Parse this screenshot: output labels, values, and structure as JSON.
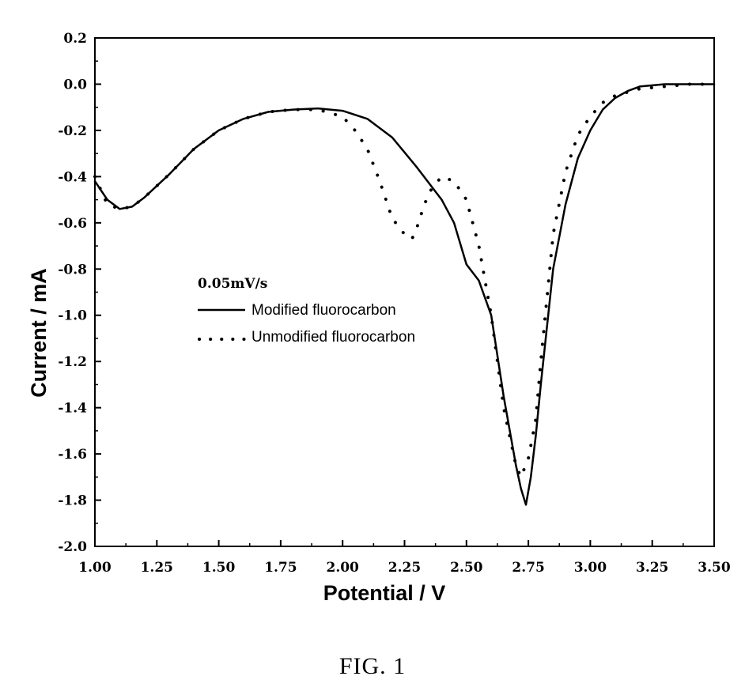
{
  "caption": "FIG. 1",
  "chart_data": {
    "type": "line",
    "xlabel": "Potential / V",
    "ylabel": "Current / mA",
    "xlim": [
      1.0,
      3.5
    ],
    "ylim": [
      -2.0,
      0.2
    ],
    "xticks": [
      "1.00",
      "1.25",
      "1.50",
      "1.75",
      "2.00",
      "2.25",
      "2.50",
      "2.75",
      "3.00",
      "3.25",
      "3.50"
    ],
    "yticks": [
      "0.2",
      "0.0",
      "-0.2",
      "-0.4",
      "-0.6",
      "-0.8",
      "-1.0",
      "-1.2",
      "-1.4",
      "-1.6",
      "-1.8",
      "-2.0"
    ],
    "grid": false,
    "legend": {
      "title": "0.05mV/s",
      "placement": "center-left"
    },
    "series": [
      {
        "name": "Modified fluorocarbon",
        "style": "solid",
        "color": "#000000",
        "x": [
          1.0,
          1.05,
          1.1,
          1.15,
          1.2,
          1.3,
          1.4,
          1.5,
          1.6,
          1.7,
          1.8,
          1.9,
          2.0,
          2.1,
          2.2,
          2.3,
          2.4,
          2.45,
          2.5,
          2.55,
          2.6,
          2.65,
          2.7,
          2.72,
          2.74,
          2.76,
          2.78,
          2.8,
          2.85,
          2.9,
          2.95,
          3.0,
          3.05,
          3.1,
          3.15,
          3.2,
          3.3,
          3.4,
          3.5
        ],
        "y": [
          -0.42,
          -0.5,
          -0.54,
          -0.53,
          -0.49,
          -0.39,
          -0.28,
          -0.2,
          -0.15,
          -0.12,
          -0.11,
          -0.105,
          -0.115,
          -0.15,
          -0.23,
          -0.36,
          -0.5,
          -0.6,
          -0.78,
          -0.85,
          -1.0,
          -1.35,
          -1.65,
          -1.75,
          -1.82,
          -1.7,
          -1.52,
          -1.3,
          -0.8,
          -0.52,
          -0.32,
          -0.2,
          -0.11,
          -0.06,
          -0.03,
          -0.01,
          0.0,
          0.0,
          0.0
        ]
      },
      {
        "name": "Unmodified fluorocarbon",
        "style": "dotted",
        "color": "#000000",
        "x": [
          1.0,
          1.05,
          1.1,
          1.15,
          1.2,
          1.3,
          1.4,
          1.5,
          1.6,
          1.7,
          1.8,
          1.9,
          2.0,
          2.05,
          2.1,
          2.15,
          2.2,
          2.25,
          2.28,
          2.3,
          2.33,
          2.36,
          2.4,
          2.45,
          2.5,
          2.55,
          2.6,
          2.65,
          2.7,
          2.72,
          2.75,
          2.78,
          2.8,
          2.85,
          2.9,
          2.95,
          3.0,
          3.05,
          3.1,
          3.2,
          3.3,
          3.4,
          3.5
        ],
        "y": [
          -0.4,
          -0.52,
          -0.54,
          -0.53,
          -0.49,
          -0.39,
          -0.28,
          -0.2,
          -0.15,
          -0.12,
          -0.11,
          -0.11,
          -0.14,
          -0.2,
          -0.28,
          -0.42,
          -0.58,
          -0.65,
          -0.67,
          -0.62,
          -0.52,
          -0.45,
          -0.4,
          -0.42,
          -0.5,
          -0.7,
          -1.0,
          -1.4,
          -1.65,
          -1.7,
          -1.62,
          -1.45,
          -1.2,
          -0.65,
          -0.38,
          -0.22,
          -0.14,
          -0.08,
          -0.05,
          -0.02,
          -0.01,
          0.0,
          0.0
        ]
      }
    ]
  }
}
